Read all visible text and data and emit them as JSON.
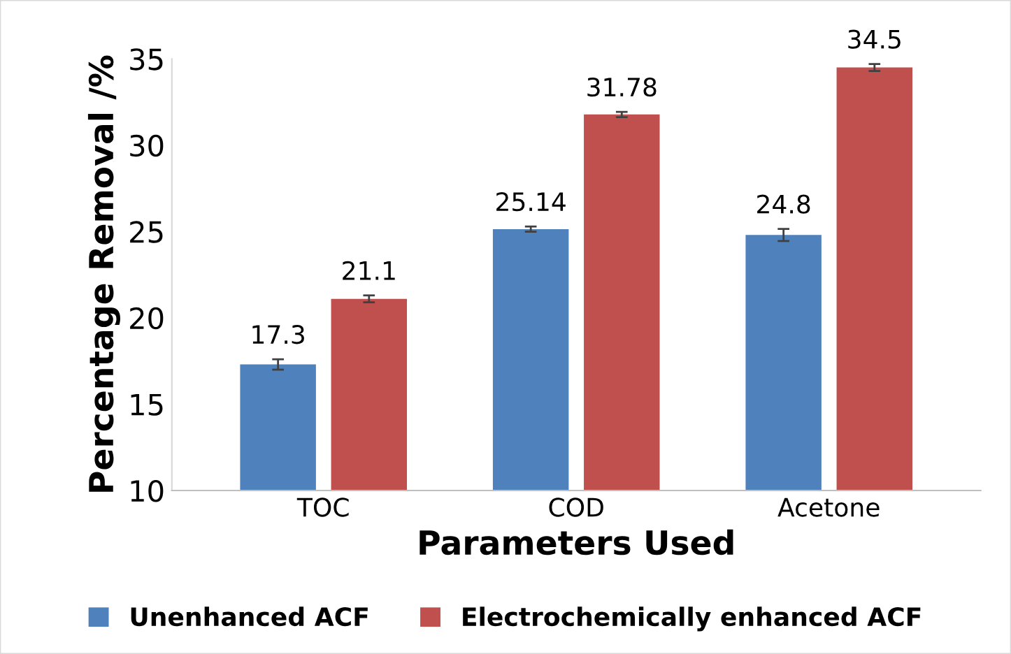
{
  "chart_data": {
    "type": "bar",
    "xlabel": "Parameters Used",
    "ylabel": "Percentage Removal /%",
    "categories": [
      "TOC",
      "COD",
      "Acetone"
    ],
    "series": [
      {
        "name": "Unenhanced ACF",
        "color": "#4f81bd",
        "values": [
          17.3,
          25.14,
          24.8
        ],
        "errors": [
          0.3,
          0.15,
          0.35
        ]
      },
      {
        "name": "Electrochemically enhanced ACF",
        "color": "#c0504d",
        "values": [
          21.1,
          31.78,
          34.5
        ],
        "errors": [
          0.2,
          0.15,
          0.2
        ]
      }
    ],
    "ylim": [
      10,
      35
    ],
    "yticks": [
      10,
      15,
      20,
      25,
      30,
      35
    ],
    "grid": false,
    "legend": "bottom",
    "data_labels": true
  }
}
